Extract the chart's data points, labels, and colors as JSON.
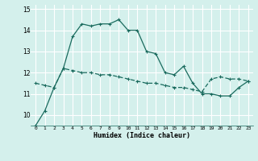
{
  "xlabel": "Humidex (Indice chaleur)",
  "x": [
    0,
    1,
    2,
    3,
    4,
    5,
    6,
    7,
    8,
    9,
    10,
    11,
    12,
    13,
    14,
    15,
    16,
    17,
    18,
    19,
    20,
    21,
    22,
    23
  ],
  "line1": [
    9.5,
    10.2,
    11.3,
    12.2,
    13.7,
    14.3,
    14.2,
    14.3,
    14.3,
    14.5,
    14.0,
    14.0,
    13.0,
    12.9,
    12.0,
    11.9,
    12.3,
    11.5,
    11.0,
    11.0,
    10.9,
    10.9,
    11.3,
    11.6
  ],
  "line2": [
    11.5,
    11.4,
    11.3,
    12.2,
    12.1,
    12.0,
    12.0,
    11.9,
    11.9,
    11.8,
    11.7,
    11.6,
    11.5,
    11.5,
    11.4,
    11.3,
    11.3,
    11.2,
    11.1,
    11.7,
    11.8,
    11.7,
    11.7,
    11.6
  ],
  "line_color": "#1a6b5e",
  "bg_color": "#d4f0ec",
  "grid_color": "#ffffff",
  "ylim": [
    9.5,
    15.2
  ],
  "xlim": [
    -0.5,
    23.5
  ],
  "yticks": [
    10,
    11,
    12,
    13,
    14,
    15
  ],
  "xticks": [
    0,
    1,
    2,
    3,
    4,
    5,
    6,
    7,
    8,
    9,
    10,
    11,
    12,
    13,
    14,
    15,
    16,
    17,
    18,
    19,
    20,
    21,
    22,
    23
  ],
  "xtick_labels": [
    "0",
    "1",
    "2",
    "3",
    "4",
    "5",
    "6",
    "7",
    "8",
    "9",
    "10",
    "11",
    "12",
    "13",
    "14",
    "15",
    "16",
    "17",
    "18",
    "19",
    "20",
    "21",
    "22",
    "23"
  ]
}
